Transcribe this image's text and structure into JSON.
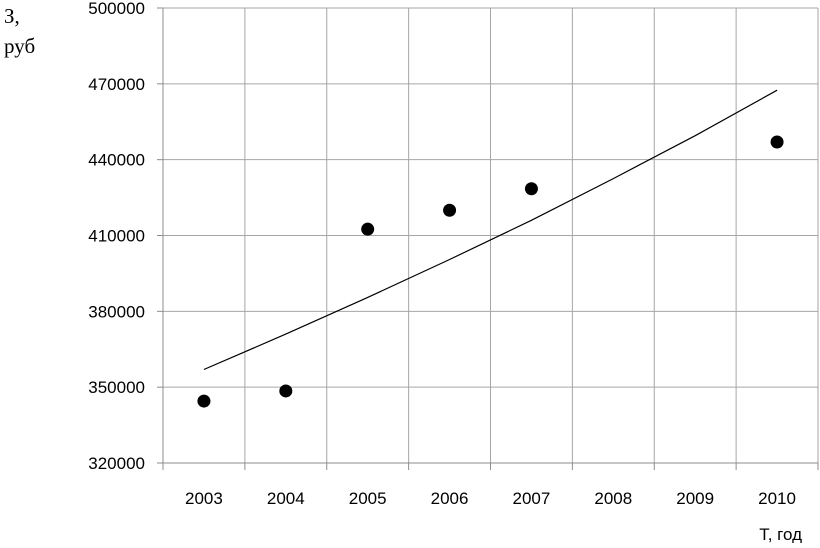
{
  "chart_data": {
    "type": "scatter",
    "title": "",
    "ylabel_lines": [
      "З,",
      "руб"
    ],
    "xlabel": "Т, год",
    "x_categories": [
      "2003",
      "2004",
      "2005",
      "2006",
      "2007",
      "2008",
      "2009",
      "2010"
    ],
    "ylim": [
      320000,
      500000
    ],
    "yticks": [
      "320000",
      "350000",
      "380000",
      "410000",
      "440000",
      "470000",
      "500000"
    ],
    "grid": true,
    "legend": "none",
    "series": [
      {
        "kind": "points",
        "x": [
          2003,
          2004,
          2005,
          2006,
          2007,
          2010
        ],
        "y": [
          344500,
          348500,
          412500,
          420000,
          428500,
          447000
        ],
        "color": "#000000"
      },
      {
        "kind": "trend-line",
        "x": [
          2003,
          2004,
          2005,
          2006,
          2007,
          2008,
          2009,
          2010
        ],
        "y": [
          357000,
          371000,
          385500,
          400500,
          416000,
          432500,
          449500,
          467500
        ],
        "color": "#000000"
      }
    ]
  }
}
